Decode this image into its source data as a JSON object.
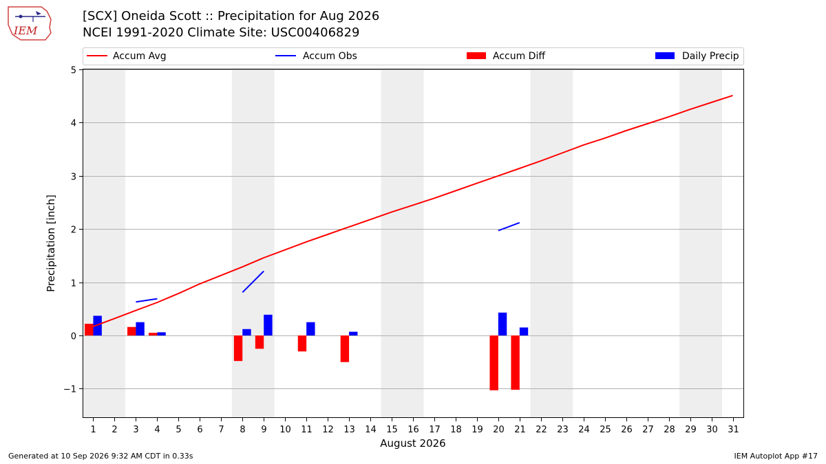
{
  "header": {
    "title_line1": "[SCX] Oneida Scott :: Precipitation for Aug 2026",
    "title_line2": "NCEI 1991-2020 Climate Site: USC00406829",
    "logo_text": "IEM"
  },
  "footer": {
    "left": "Generated at 10 Sep 2026 9:32 AM CDT in 0.33s",
    "right": "IEM Autoplot App #17"
  },
  "colors": {
    "accum_avg": "#ff0000",
    "accum_obs": "#0000ff",
    "accum_diff": "#ff0000",
    "daily_precip": "#0000ff",
    "weekend_shade": "#eeeeee",
    "grid": "#b0b0b0"
  },
  "chart_data": {
    "type": "bar",
    "xlabel": "August 2026",
    "ylabel": "Precipitation [inch]",
    "ylim": [
      -1.55,
      5
    ],
    "xlim": [
      0.5,
      31.5
    ],
    "yticks": [
      -1,
      0,
      1,
      2,
      3,
      4,
      5
    ],
    "ytick_labels": [
      "−1",
      "0",
      "1",
      "2",
      "3",
      "4",
      "5"
    ],
    "days": [
      1,
      2,
      3,
      4,
      5,
      6,
      7,
      8,
      9,
      10,
      11,
      12,
      13,
      14,
      15,
      16,
      17,
      18,
      19,
      20,
      21,
      22,
      23,
      24,
      25,
      26,
      27,
      28,
      29,
      30,
      31
    ],
    "grid": "horizontal",
    "legend_position": "top",
    "shaded_ranges": [
      [
        0.5,
        2.5
      ],
      [
        7.5,
        9.5
      ],
      [
        14.5,
        16.5
      ],
      [
        21.5,
        23.5
      ],
      [
        28.5,
        30.5
      ]
    ],
    "series": [
      {
        "name": "Accum Avg",
        "kind": "line",
        "x": [
          1,
          2,
          3,
          4,
          5,
          6,
          7,
          8,
          9,
          10,
          11,
          12,
          13,
          14,
          15,
          16,
          17,
          18,
          19,
          20,
          21,
          22,
          23,
          24,
          25,
          26,
          27,
          28,
          29,
          30,
          31
        ],
        "values": [
          0.17,
          0.32,
          0.47,
          0.62,
          0.79,
          0.97,
          1.13,
          1.29,
          1.46,
          1.61,
          1.76,
          1.9,
          2.04,
          2.18,
          2.32,
          2.45,
          2.58,
          2.72,
          2.86,
          3.0,
          3.14,
          3.28,
          3.43,
          3.58,
          3.71,
          3.85,
          3.98,
          4.11,
          4.25,
          4.38,
          4.51
        ]
      },
      {
        "name": "Accum Obs",
        "kind": "line",
        "x": [
          1,
          2,
          3,
          4,
          5,
          6,
          7,
          8,
          9,
          10,
          11,
          12,
          13,
          14,
          15,
          16,
          17,
          18,
          19,
          20,
          21,
          22,
          23,
          24,
          25,
          26,
          27,
          28,
          29,
          30,
          31
        ],
        "values": [
          null,
          null,
          0.63,
          0.69,
          null,
          null,
          null,
          0.81,
          1.21,
          null,
          null,
          null,
          null,
          null,
          null,
          null,
          null,
          null,
          null,
          1.97,
          2.12,
          null,
          null,
          null,
          null,
          null,
          null,
          null,
          null,
          null,
          null
        ]
      },
      {
        "name": "Accum Diff",
        "kind": "bar",
        "x": [
          1,
          3,
          4,
          8,
          9,
          11,
          13,
          20,
          21
        ],
        "values": [
          0.22,
          0.16,
          0.05,
          -0.48,
          -0.25,
          -0.3,
          -0.5,
          -1.03,
          -1.02
        ]
      },
      {
        "name": "Daily Precip",
        "kind": "bar",
        "x": [
          1,
          3,
          4,
          8,
          9,
          11,
          13,
          20,
          21
        ],
        "values": [
          0.37,
          0.25,
          0.06,
          0.12,
          0.39,
          0.25,
          0.07,
          0.43,
          0.15
        ]
      }
    ]
  }
}
